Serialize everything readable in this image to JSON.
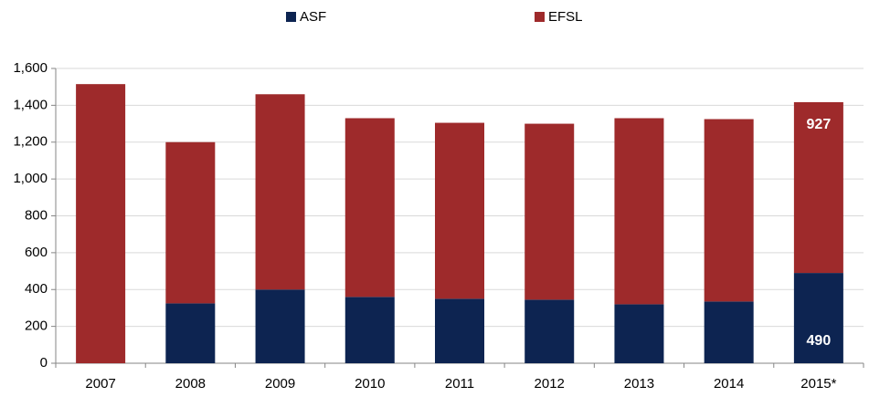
{
  "chart_data": {
    "type": "stacked_bar",
    "categories": [
      "2007",
      "2008",
      "2009",
      "2010",
      "2011",
      "2012",
      "2013",
      "2014",
      "2015*"
    ],
    "series": [
      {
        "name": "ASF",
        "color": "#0d2451",
        "values": [
          0,
          325,
          400,
          360,
          350,
          345,
          320,
          335,
          490
        ],
        "value_labels": [
          null,
          null,
          null,
          null,
          null,
          null,
          null,
          null,
          "490"
        ]
      },
      {
        "name": "EFSL",
        "color": "#9e2a2b",
        "values": [
          1515,
          875,
          1060,
          970,
          955,
          955,
          1010,
          990,
          927
        ],
        "value_labels": [
          null,
          null,
          null,
          null,
          null,
          null,
          null,
          null,
          "927"
        ]
      }
    ],
    "ylim": [
      0,
      1600
    ],
    "yticks": [
      0,
      200,
      400,
      600,
      800,
      {
        "value": 1000,
        "label": "1,000"
      },
      {
        "value": 1200,
        "label": "1,200"
      },
      {
        "value": 1400,
        "label": "1,400"
      },
      {
        "value": 1600,
        "label": "1,600"
      }
    ],
    "grid": true,
    "legend": "top"
  }
}
